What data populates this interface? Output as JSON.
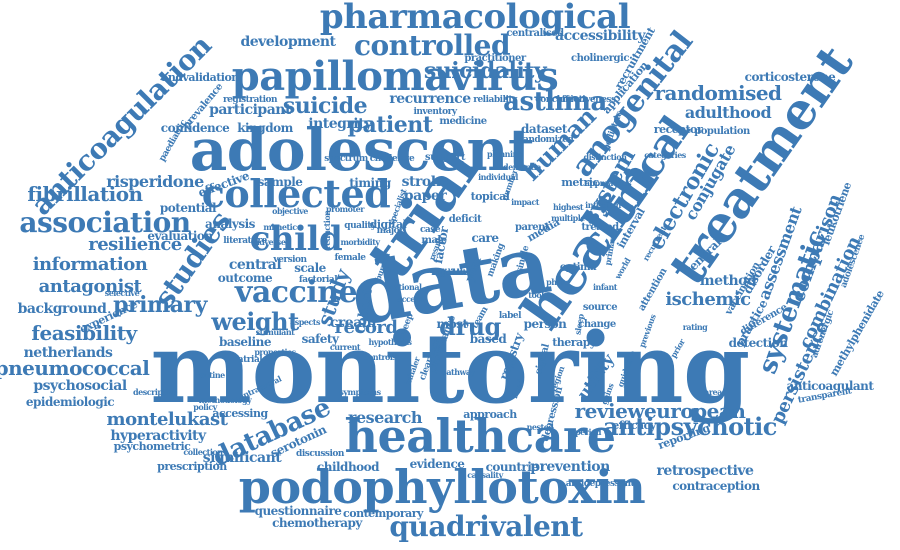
{
  "cloud": {
    "color": "#3d7ab5",
    "words": [
      {
        "text": "monitoring"
      },
      {
        "text": "data"
      },
      {
        "text": "adolescent"
      },
      {
        "text": "healthcare"
      },
      {
        "text": "podophyllotoxin"
      },
      {
        "text": "papillomavirus"
      },
      {
        "text": "trial"
      },
      {
        "text": "health"
      },
      {
        "text": "treatment"
      },
      {
        "text": "clinical"
      },
      {
        "text": "pharmacological"
      },
      {
        "text": "collected"
      },
      {
        "text": "child"
      },
      {
        "text": "association"
      },
      {
        "text": "quadrivalent"
      },
      {
        "text": "vaccine"
      },
      {
        "text": "controlled"
      },
      {
        "text": "anogenital"
      },
      {
        "text": "database"
      },
      {
        "text": "anticoagulation"
      },
      {
        "text": "antipsychotic"
      },
      {
        "text": "suicidality"
      },
      {
        "text": "studies"
      },
      {
        "text": "asthma"
      },
      {
        "text": "patient"
      },
      {
        "text": "suicide"
      },
      {
        "text": "weight"
      },
      {
        "text": "drug"
      },
      {
        "text": "human"
      },
      {
        "text": "systematic"
      },
      {
        "text": "electronic"
      },
      {
        "text": "system"
      },
      {
        "text": "randomised"
      },
      {
        "text": "reviewеuropean"
      },
      {
        "text": "pneumococcal"
      },
      {
        "text": "feasibility"
      },
      {
        "text": "resilience"
      },
      {
        "text": "primary"
      },
      {
        "text": "fibrillation"
      },
      {
        "text": "development"
      },
      {
        "text": "information"
      },
      {
        "text": "antagonist"
      },
      {
        "text": "risperidone"
      },
      {
        "text": "montelukast"
      },
      {
        "text": "study"
      },
      {
        "text": "record"
      },
      {
        "text": "persistence"
      },
      {
        "text": "combination"
      },
      {
        "text": "comparison"
      },
      {
        "text": "assessment"
      },
      {
        "text": "adulthood"
      },
      {
        "text": "ischemic"
      },
      {
        "text": "research"
      },
      {
        "text": "cream"
      },
      {
        "text": "utility"
      },
      {
        "text": "conjugate"
      },
      {
        "text": "method"
      },
      {
        "text": "participant"
      },
      {
        "text": "recurrence"
      },
      {
        "text": "accessibility"
      },
      {
        "text": "hyperactivity"
      },
      {
        "text": "psychosocial"
      },
      {
        "text": "significant"
      },
      {
        "text": "netherlands"
      },
      {
        "text": "background"
      },
      {
        "text": "stroke"
      },
      {
        "text": "paper"
      },
      {
        "text": "integrity"
      },
      {
        "text": "sample"
      },
      {
        "text": "central"
      },
      {
        "text": "outcome"
      },
      {
        "text": "safety"
      },
      {
        "text": "baseline"
      },
      {
        "text": "epidemiologic"
      },
      {
        "text": "serotonin"
      },
      {
        "text": "childhood"
      },
      {
        "text": "prevention"
      },
      {
        "text": "retrospective"
      },
      {
        "text": "contraception"
      },
      {
        "text": "questionnaire"
      },
      {
        "text": "chemotherapy"
      },
      {
        "text": "evidence"
      },
      {
        "text": "countrie"
      },
      {
        "text": "anticoagulant"
      },
      {
        "text": "methylphenidate"
      },
      {
        "text": "corticosterone"
      },
      {
        "text": "leukotriene"
      },
      {
        "text": "disorder"
      },
      {
        "text": "practice"
      },
      {
        "text": "general"
      },
      {
        "text": "detection"
      },
      {
        "text": "approach"
      },
      {
        "text": "reporting"
      },
      {
        "text": "dataset"
      },
      {
        "text": "confidence"
      },
      {
        "text": "kingdom"
      },
      {
        "text": "effective"
      },
      {
        "text": "potential"
      },
      {
        "text": "evaluation"
      },
      {
        "text": "analysis"
      },
      {
        "text": "cholinergic"
      },
      {
        "text": "practitioner"
      },
      {
        "text": "centralised"
      },
      {
        "text": "andvalidation"
      },
      {
        "text": "registration"
      },
      {
        "text": "prevalence"
      },
      {
        "text": "paediatric"
      },
      {
        "text": "experience"
      },
      {
        "text": "psychometric"
      },
      {
        "text": "prescription"
      },
      {
        "text": "accessing"
      },
      {
        "text": "contemporary"
      },
      {
        "text": "discussion"
      },
      {
        "text": "antidepressant"
      },
      {
        "text": "efficacy"
      },
      {
        "text": "therapy"
      },
      {
        "text": "person"
      },
      {
        "text": "registry"
      },
      {
        "text": "based"
      },
      {
        "text": "most"
      },
      {
        "text": "care"
      },
      {
        "text": "timing"
      },
      {
        "text": "scale"
      },
      {
        "text": "medicine"
      },
      {
        "text": "cohort"
      },
      {
        "text": "recruitment"
      },
      {
        "text": "application"
      },
      {
        "text": "population"
      },
      {
        "text": "receptor"
      },
      {
        "text": "vaccination"
      },
      {
        "text": "adrenergic"
      },
      {
        "text": "adolescence"
      },
      {
        "text": "difference"
      },
      {
        "text": "transparent"
      },
      {
        "text": "metric"
      },
      {
        "text": "topical"
      },
      {
        "text": "factor"
      },
      {
        "text": "year"
      },
      {
        "text": "digital"
      },
      {
        "text": "male"
      },
      {
        "text": "depression"
      },
      {
        "text": "signal"
      },
      {
        "text": "source"
      },
      {
        "text": "change"
      },
      {
        "text": "attention"
      },
      {
        "text": "interval"
      },
      {
        "text": "optima"
      },
      {
        "text": "media"
      },
      {
        "text": "treated"
      },
      {
        "text": "parent"
      },
      {
        "text": "support"
      },
      {
        "text": "spectrum"
      },
      {
        "text": "challenge"
      },
      {
        "text": "inventory"
      },
      {
        "text": "reliability"
      },
      {
        "text": "conclusion"
      },
      {
        "text": "effectiveness"
      },
      {
        "text": "randomized"
      },
      {
        "text": "pediatric"
      },
      {
        "text": "distinction"
      },
      {
        "text": "categories"
      },
      {
        "text": "approaches"
      },
      {
        "text": "infection"
      },
      {
        "text": "recurrent"
      },
      {
        "text": "previous"
      },
      {
        "text": "guideline"
      },
      {
        "text": "literature"
      },
      {
        "text": "mimetic"
      },
      {
        "text": "factorial"
      },
      {
        "text": "version"
      },
      {
        "text": "female"
      },
      {
        "text": "quality"
      },
      {
        "text": "major"
      },
      {
        "text": "deficit"
      },
      {
        "text": "result"
      },
      {
        "text": "case"
      },
      {
        "text": "label"
      },
      {
        "text": "team"
      },
      {
        "text": "atrial"
      },
      {
        "text": "stimulant"
      },
      {
        "text": "hypothesis"
      },
      {
        "text": "current"
      },
      {
        "text": "policy"
      },
      {
        "text": "selective"
      },
      {
        "text": "collection"
      },
      {
        "text": "methodology"
      },
      {
        "text": "causality"
      },
      {
        "text": "provenance"
      },
      {
        "text": "clearance"
      },
      {
        "text": "sweep"
      },
      {
        "text": "single"
      },
      {
        "text": "making"
      },
      {
        "text": "highest"
      },
      {
        "text": "multiple"
      },
      {
        "text": "individual"
      },
      {
        "text": "number"
      },
      {
        "text": "objective"
      },
      {
        "text": "reduction"
      },
      {
        "text": "promoter"
      },
      {
        "text": "morbidity"
      },
      {
        "text": "adverse"
      },
      {
        "text": "aspects"
      },
      {
        "text": "properties"
      },
      {
        "text": "intramural"
      },
      {
        "text": "routine"
      },
      {
        "text": "descriptive"
      },
      {
        "text": "symptoms"
      },
      {
        "text": "controls"
      },
      {
        "text": "nested"
      },
      {
        "text": "fixed"
      },
      {
        "text": "region"
      },
      {
        "text": "sleep"
      },
      {
        "text": "world"
      },
      {
        "text": "prior"
      },
      {
        "text": "rating"
      },
      {
        "text": "tools"
      },
      {
        "text": "phase"
      },
      {
        "text": "infant"
      },
      {
        "text": "primary"
      },
      {
        "text": "impact"
      },
      {
        "text": "planning"
      },
      {
        "text": "dementia"
      },
      {
        "text": "specialist"
      },
      {
        "text": "burden"
      },
      {
        "text": "national"
      },
      {
        "text": "access"
      },
      {
        "text": "inhaler"
      },
      {
        "text": "pathway"
      },
      {
        "text": "period"
      },
      {
        "text": "gains"
      },
      {
        "text": "areas"
      },
      {
        "text": "online"
      },
      {
        "text": "model"
      },
      {
        "text": "years"
      },
      {
        "text": "cases"
      },
      {
        "text": "level"
      },
      {
        "text": "users"
      },
      {
        "text": "variables"
      },
      {
        "text": "consent"
      },
      {
        "text": "estimate"
      },
      {
        "text": "income"
      },
      {
        "text": "influence"
      },
      {
        "text": "agents"
      }
    ]
  }
}
